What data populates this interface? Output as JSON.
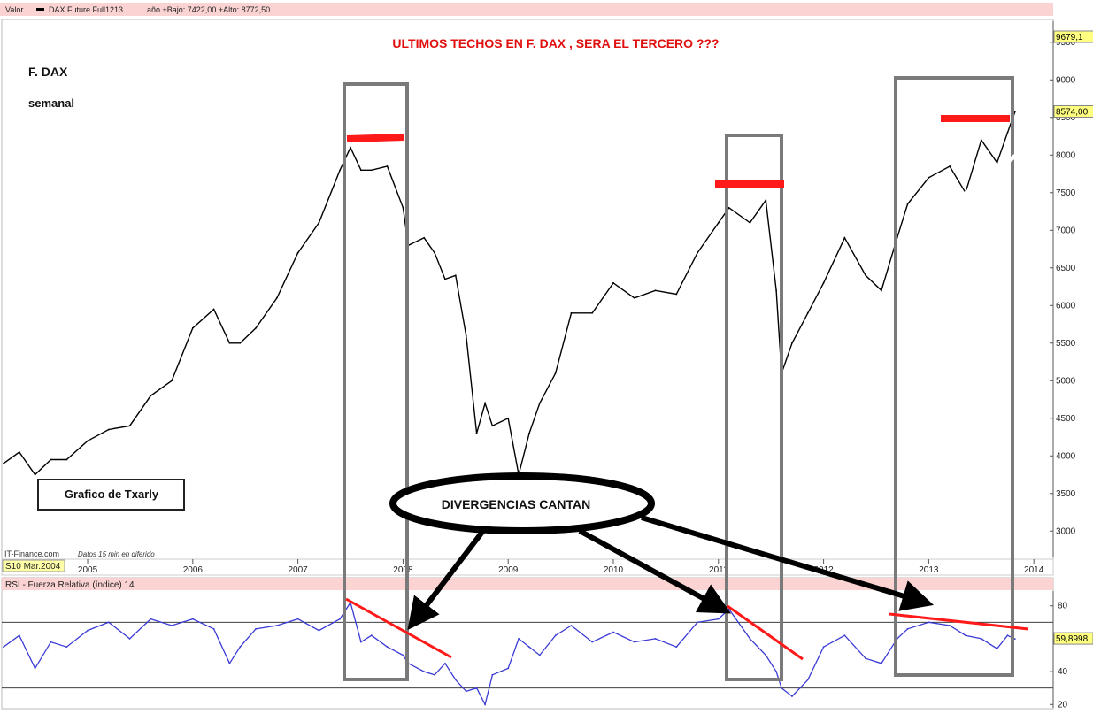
{
  "header": {
    "valor_label": "Valor",
    "series_label": "DAX Future Full1213",
    "range_text": "año +Bajo: 7422,00 +Alto: 8772,50"
  },
  "annotations": {
    "main_title": "ULTIMOS  TECHOS  EN  F.  DAX   ,  SERA  EL   TERCERO ???",
    "instrument": "F. DAX",
    "period": "semanal",
    "author_box": "Grafico  de  Txarly",
    "callout": "DIVERGENCIAS CANTAN",
    "source": "IT-Finance.com",
    "delay_note": "Datos 15 min en diferido",
    "date_badge": "S10 Mar.2004"
  },
  "colors": {
    "price": "#000000",
    "rsi": "#3b3bd6",
    "highlight": "#ff1a1a",
    "title": "#e01010",
    "box": "#7a7a7a",
    "header_bg": "#f8b8b8"
  },
  "chart_data": [
    {
      "type": "line",
      "name": "price",
      "title": "ULTIMOS  TECHOS  EN  F.  DAX   ,  SERA  EL   TERCERO ???",
      "xlabel": "",
      "ylabel": "",
      "x_tick_labels": [
        "2005",
        "2006",
        "2007",
        "2008",
        "2009",
        "2010",
        "2011",
        "2012",
        "2013",
        "2014"
      ],
      "y_ticks": [
        3000,
        3500,
        4000,
        4500,
        5000,
        5500,
        6000,
        6500,
        7000,
        7500,
        8000,
        8500,
        9000,
        9500
      ],
      "y_tick_labels": [
        "3000",
        "3500",
        "4000",
        "4500",
        "5000",
        "5500",
        "6000",
        "6500",
        "7000",
        "7500",
        "8000",
        "8500",
        "9000",
        "9500"
      ],
      "xlim": [
        2004.2,
        2014.15
      ],
      "ylim": [
        2650,
        9780
      ],
      "last_value_label": "8574,00",
      "top_value_label": "9679,1",
      "x": [
        2004.2,
        2004.35,
        2004.5,
        2004.65,
        2004.8,
        2005.0,
        2005.2,
        2005.4,
        2005.6,
        2005.8,
        2006.0,
        2006.2,
        2006.35,
        2006.45,
        2006.6,
        2006.8,
        2007.0,
        2007.2,
        2007.4,
        2007.5,
        2007.6,
        2007.7,
        2007.85,
        2008.0,
        2008.05,
        2008.2,
        2008.3,
        2008.4,
        2008.5,
        2008.6,
        2008.7,
        2008.78,
        2008.85,
        2009.0,
        2009.1,
        2009.2,
        2009.3,
        2009.45,
        2009.6,
        2009.8,
        2010.0,
        2010.2,
        2010.4,
        2010.6,
        2010.8,
        2011.0,
        2011.1,
        2011.3,
        2011.45,
        2011.55,
        2011.6,
        2011.7,
        2011.85,
        2012.0,
        2012.2,
        2012.4,
        2012.55,
        2012.7,
        2012.8,
        2013.0,
        2013.2,
        2013.35,
        2013.5,
        2013.65,
        2013.75,
        2013.82
      ],
      "values": [
        3900,
        4050,
        3750,
        3950,
        3950,
        4200,
        4350,
        4400,
        4800,
        5000,
        5700,
        5950,
        5500,
        5500,
        5700,
        6100,
        6700,
        7100,
        7800,
        8100,
        7800,
        7800,
        7850,
        7300,
        6800,
        6900,
        6700,
        6350,
        6400,
        5600,
        4300,
        4700,
        4400,
        4500,
        3750,
        4300,
        4700,
        5100,
        5900,
        5900,
        6300,
        6100,
        6200,
        6150,
        6700,
        7100,
        7300,
        7100,
        7400,
        6200,
        5100,
        5500,
        5900,
        6300,
        6900,
        6400,
        6200,
        6900,
        7350,
        7700,
        7850,
        7500,
        8200,
        7900,
        8300,
        8574
      ]
    },
    {
      "type": "line",
      "name": "rsi",
      "title": "RSI - Fuerza Relativa (índice) 14",
      "xlabel": "",
      "ylabel": "",
      "y_ticks": [
        20,
        40,
        80
      ],
      "y_tick_labels": [
        "20",
        "40",
        "80"
      ],
      "ylim": [
        18,
        89
      ],
      "reference_lines": [
        30,
        70
      ],
      "last_value_label": "59,8998",
      "x": [
        2004.2,
        2004.35,
        2004.5,
        2004.65,
        2004.8,
        2005.0,
        2005.2,
        2005.4,
        2005.6,
        2005.8,
        2006.0,
        2006.2,
        2006.35,
        2006.45,
        2006.6,
        2006.8,
        2007.0,
        2007.2,
        2007.4,
        2007.5,
        2007.6,
        2007.7,
        2007.85,
        2008.0,
        2008.05,
        2008.2,
        2008.3,
        2008.4,
        2008.5,
        2008.6,
        2008.7,
        2008.78,
        2008.85,
        2009.0,
        2009.1,
        2009.2,
        2009.3,
        2009.45,
        2009.6,
        2009.8,
        2010.0,
        2010.2,
        2010.4,
        2010.6,
        2010.8,
        2011.0,
        2011.1,
        2011.3,
        2011.45,
        2011.55,
        2011.6,
        2011.7,
        2011.85,
        2012.0,
        2012.2,
        2012.4,
        2012.55,
        2012.7,
        2012.8,
        2013.0,
        2013.2,
        2013.35,
        2013.5,
        2013.65,
        2013.75,
        2013.82
      ],
      "values": [
        55,
        62,
        42,
        58,
        55,
        65,
        70,
        60,
        72,
        68,
        72,
        66,
        45,
        55,
        66,
        68,
        72,
        65,
        72,
        82,
        58,
        62,
        55,
        50,
        45,
        40,
        38,
        45,
        35,
        28,
        30,
        20,
        38,
        42,
        60,
        55,
        50,
        62,
        68,
        58,
        64,
        58,
        60,
        55,
        70,
        72,
        78,
        60,
        50,
        40,
        30,
        25,
        35,
        55,
        62,
        48,
        45,
        60,
        66,
        70,
        68,
        62,
        60,
        54,
        62,
        59.9
      ]
    }
  ]
}
